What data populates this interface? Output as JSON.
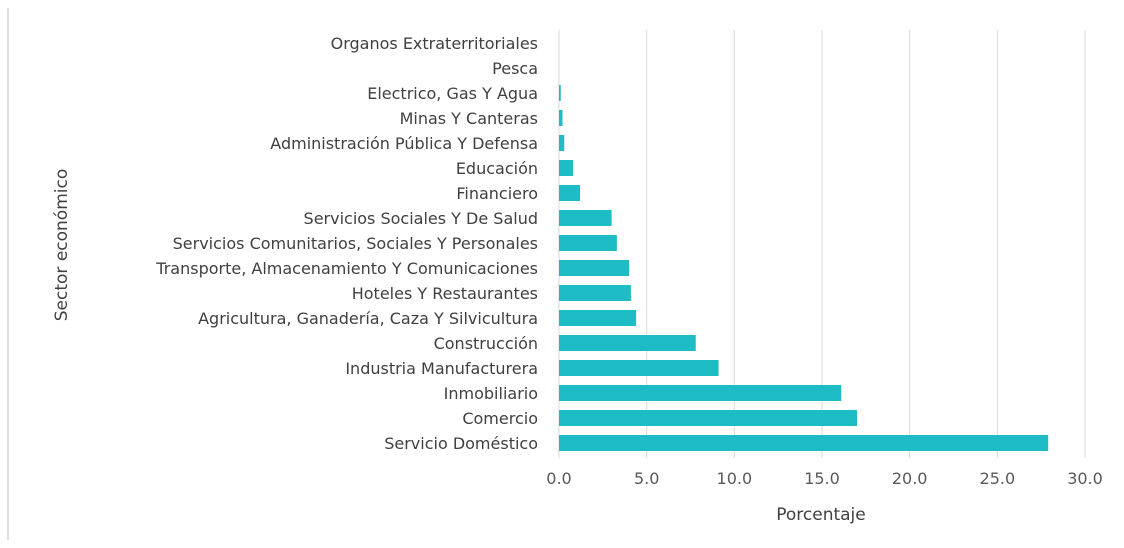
{
  "chart_data": {
    "type": "bar",
    "orientation": "horizontal",
    "categories": [
      "Organos Extraterritoriales",
      "Pesca",
      "Electrico, Gas Y Agua",
      "Minas Y Canteras",
      "Administración Pública Y Defensa",
      "Educación",
      "Financiero",
      "Servicios Sociales Y De Salud",
      "Servicios Comunitarios, Sociales Y Personales",
      "Transporte, Almacenamiento Y Comunicaciones",
      "Hoteles Y Restaurantes",
      "Agricultura, Ganadería, Caza Y Silvicultura",
      "Construcción",
      "Industria Manufacturera",
      "Inmobiliario",
      "Comercio",
      "Servicio Doméstico"
    ],
    "values": [
      0.0,
      0.0,
      0.1,
      0.2,
      0.3,
      0.8,
      1.2,
      3.0,
      3.3,
      4.0,
      4.1,
      4.4,
      7.8,
      9.1,
      16.1,
      17.0,
      27.9
    ],
    "xlabel": "Porcentaje",
    "ylabel": "Sector económico",
    "xlim": [
      0,
      30
    ],
    "xticks": [
      "0.0",
      "5.0",
      "10.0",
      "15.0",
      "20.0",
      "25.0",
      "30.0"
    ],
    "grid": "vertical",
    "bar_color": "#1ebcc4"
  }
}
